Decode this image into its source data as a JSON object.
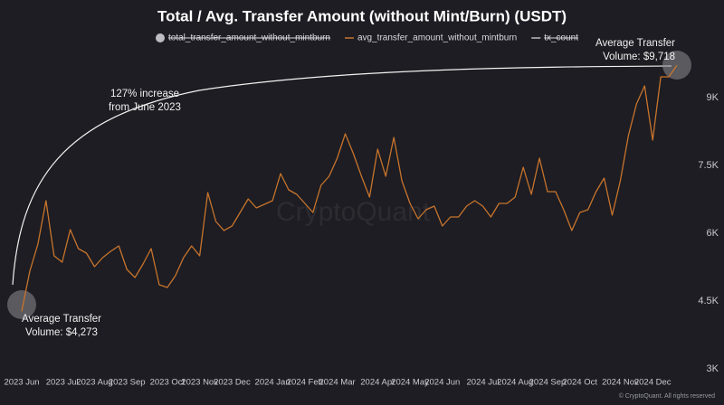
{
  "chart_data": {
    "type": "line",
    "title": "Total / Avg. Transfer Amount (without Mint/Burn) (USDT)",
    "legend_items": [
      {
        "name": "total_transfer_amount_without_mintburn",
        "color": "#bdbdc3",
        "hidden": true,
        "marker": "circle"
      },
      {
        "name": "avg_transfer_amount_without_mintburn",
        "color": "#c8742c",
        "hidden": false,
        "marker": "line"
      },
      {
        "name": "tx_count",
        "color": "#bdbdc3",
        "hidden": true,
        "marker": "line"
      }
    ],
    "categories": [
      "2023 Jun",
      null,
      null,
      null,
      null,
      "2023 Jul",
      null,
      null,
      null,
      "2023 Aug",
      null,
      null,
      null,
      "2023 Sep",
      null,
      null,
      null,
      null,
      "2023 Oct",
      null,
      null,
      null,
      "2023 Nov",
      null,
      null,
      null,
      "2023 Dec",
      null,
      null,
      null,
      null,
      "2024 Jan",
      null,
      null,
      null,
      "2024 Feb",
      null,
      null,
      null,
      "2024 Mar",
      null,
      null,
      null,
      null,
      "2024 Apr",
      null,
      null,
      null,
      "2024 May",
      null,
      null,
      null,
      "2024 Jun",
      null,
      null,
      null,
      null,
      "2024 Jul",
      null,
      null,
      null,
      "2024 Aug",
      null,
      null,
      null,
      "2024 Sep",
      null,
      null,
      null,
      "2024 Oct",
      null,
      null,
      null,
      null,
      "2024 Nov",
      null,
      null,
      null,
      "2024 Dec",
      null,
      null,
      null
    ],
    "series": [
      {
        "name": "avg_transfer_amount_without_mintburn",
        "color": "#c8742c",
        "values": [
          4273,
          5160,
          5760,
          6720,
          5500,
          5360,
          6080,
          5660,
          5560,
          5260,
          5460,
          5600,
          5720,
          5200,
          5020,
          5320,
          5660,
          4860,
          4800,
          5060,
          5460,
          5720,
          5500,
          6900,
          6260,
          6060,
          6160,
          6460,
          6760,
          6560,
          6640,
          6720,
          7320,
          6960,
          6860,
          6660,
          6460,
          7060,
          7260,
          7660,
          8200,
          7760,
          7260,
          6800,
          7860,
          7260,
          8120,
          7160,
          6660,
          6320,
          6520,
          6600,
          6160,
          6360,
          6360,
          6600,
          6720,
          6600,
          6360,
          6660,
          6660,
          6800,
          7460,
          6860,
          7660,
          6920,
          6920,
          6520,
          6060,
          6460,
          6520,
          6920,
          7220,
          6400,
          7160,
          8160,
          8860,
          9260,
          8060,
          9460,
          9460,
          9718
        ]
      }
    ],
    "ylim": [
      3000,
      10000
    ],
    "yticks": [
      {
        "value": 3000,
        "label": "3K"
      },
      {
        "value": 4500,
        "label": "4.5K"
      },
      {
        "value": 6000,
        "label": "6K"
      },
      {
        "value": 7500,
        "label": "7.5K"
      },
      {
        "value": 9000,
        "label": "9K"
      }
    ],
    "grid": false,
    "annotations": [
      "127% increase",
      "from June 2023",
      "Average Transfer",
      "Volume: $4,273",
      "Average Transfer",
      "Volume: $9,718"
    ],
    "watermark": "CryptoQuant",
    "footer": "© CryptoQuant. All rights reserved"
  }
}
